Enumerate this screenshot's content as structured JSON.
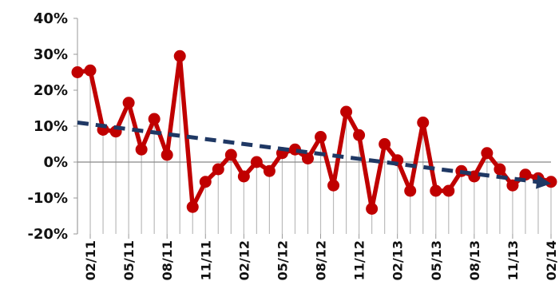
{
  "chart_data": {
    "type": "line",
    "title": "",
    "xlabel": "",
    "ylabel": "",
    "ylim": [
      -20,
      40
    ],
    "y_ticks": [
      -20,
      -10,
      0,
      10,
      20,
      30,
      40
    ],
    "y_tick_suffix": "%",
    "grid": false,
    "x_axis_labels": [
      "02/11",
      "05/11",
      "08/11",
      "11/11",
      "02/12",
      "05/12",
      "08/12",
      "11/12",
      "02/13",
      "05/13",
      "08/13",
      "11/13",
      "02/14"
    ],
    "x": [
      "01/11",
      "02/11",
      "03/11",
      "04/11",
      "05/11",
      "06/11",
      "07/11",
      "08/11",
      "09/11",
      "10/11",
      "11/11",
      "12/11",
      "01/12",
      "02/12",
      "03/12",
      "04/12",
      "05/12",
      "06/12",
      "07/12",
      "08/12",
      "09/12",
      "10/12",
      "11/12",
      "12/12",
      "01/13",
      "02/13",
      "03/13",
      "04/13",
      "05/13",
      "06/13",
      "07/13",
      "08/13",
      "09/13",
      "10/13",
      "11/13",
      "12/13",
      "01/14",
      "02/14"
    ],
    "series": [
      {
        "values": [
          25,
          25.5,
          9,
          8.5,
          16.5,
          3.5,
          12,
          2,
          29.5,
          -12.5,
          -5.5,
          -2,
          2,
          -4,
          0,
          -2.5,
          2.5,
          3.5,
          1,
          7,
          -6.5,
          14,
          7.5,
          -13,
          5,
          0.5,
          -8,
          11,
          -8,
          -8,
          -2.5,
          -4,
          2.5,
          -2,
          -6.5,
          -3.5,
          -4.5,
          -5.5
        ],
        "color": "#c00000"
      }
    ],
    "trendline": {
      "start": 11,
      "end": -6,
      "color": "#1f3864",
      "style": "dashed"
    },
    "zero_line_color": "#888888",
    "drop_line_color": "#bbbbbb"
  }
}
